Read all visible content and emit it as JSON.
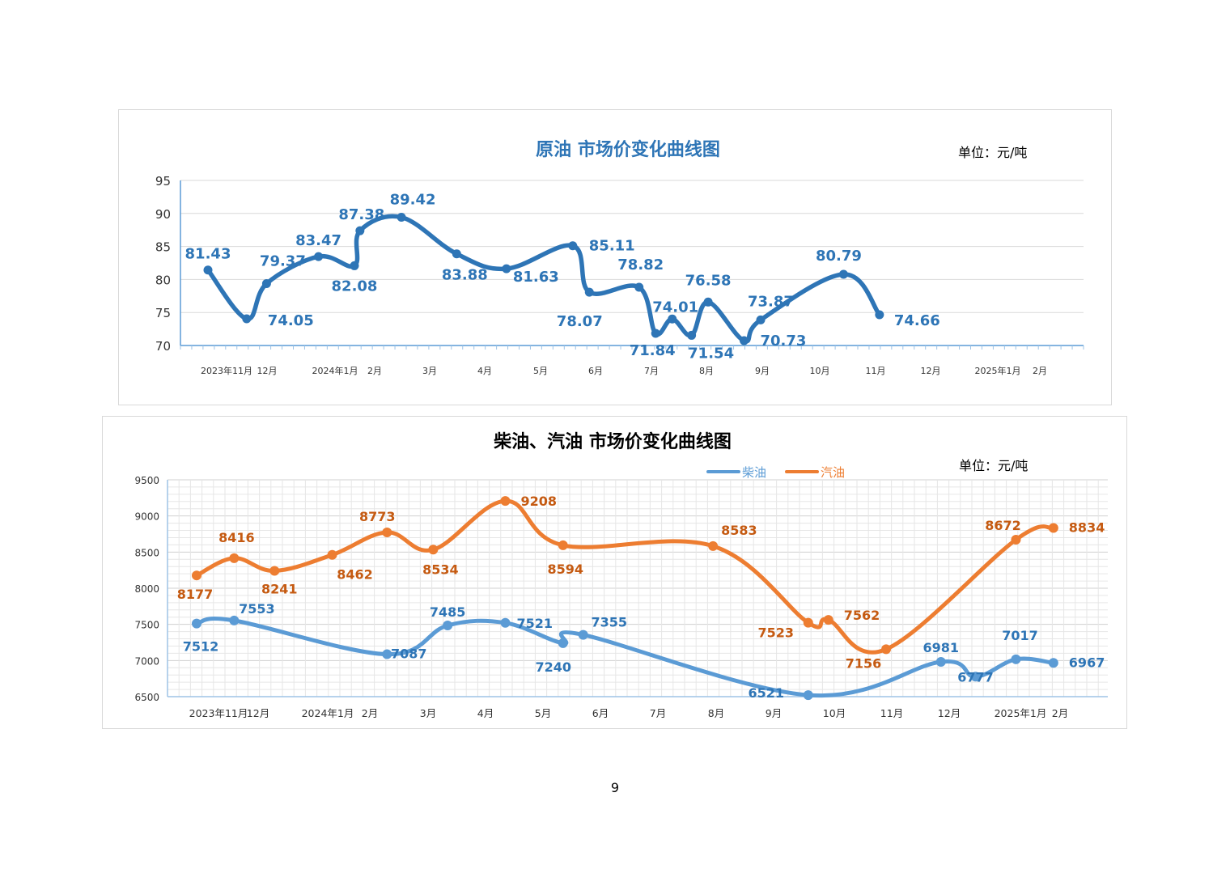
{
  "page": {
    "number": "9"
  },
  "chart_data": [
    {
      "type": "line",
      "title": "原油  市场价变化曲线图",
      "unit": "单位：元/吨",
      "ylim": [
        70,
        95
      ],
      "y_ticks": [
        "95",
        "90",
        "85",
        "80",
        "75",
        "70"
      ],
      "x_labels": [
        "2023年11月",
        "12月",
        "2024年1月",
        "2月",
        "3月",
        "4月",
        "5月",
        "6月",
        "7月",
        "8月",
        "9月",
        "10月",
        "11月",
        "12月",
        "2025年1月",
        "2月"
      ],
      "colors": {
        "line": "#2e75b6",
        "title": "#2e75b6",
        "label": "#2e75b6"
      },
      "series": [
        {
          "name": "原油",
          "points": [
            {
              "x": 0.0,
              "value": 81.43,
              "label": "81.43"
            },
            {
              "x": 0.7,
              "value": 74.05,
              "label": "74.05"
            },
            {
              "x": 1.06,
              "value": 79.37,
              "label": "79.37"
            },
            {
              "x": 2.0,
              "value": 83.47,
              "label": "83.47"
            },
            {
              "x": 2.65,
              "value": 82.08,
              "label": "82.08"
            },
            {
              "x": 2.75,
              "value": 87.38,
              "label": "87.38"
            },
            {
              "x": 3.5,
              "value": 89.42,
              "label": "89.42"
            },
            {
              "x": 4.5,
              "value": 83.88,
              "label": "83.88"
            },
            {
              "x": 5.4,
              "value": 81.63,
              "label": "81.63"
            },
            {
              "x": 6.6,
              "value": 85.11,
              "label": "85.11"
            },
            {
              "x": 6.9,
              "value": 78.07,
              "label": "78.07"
            },
            {
              "x": 7.8,
              "value": 78.82,
              "label": "78.82"
            },
            {
              "x": 8.1,
              "value": 71.84,
              "label": "71.84"
            },
            {
              "x": 8.4,
              "value": 74.01,
              "label": "74.01"
            },
            {
              "x": 8.75,
              "value": 71.54,
              "label": "71.54"
            },
            {
              "x": 9.05,
              "value": 76.58,
              "label": "76.58"
            },
            {
              "x": 9.7,
              "value": 70.73,
              "label": "70.73"
            },
            {
              "x": 10.0,
              "value": 73.87,
              "label": "73.87"
            },
            {
              "x": 11.5,
              "value": 80.79,
              "label": "80.79"
            },
            {
              "x": 12.15,
              "value": 74.66,
              "label": "74.66"
            }
          ]
        }
      ]
    },
    {
      "type": "line",
      "title": "柴油、汽油  市场价变化曲线图",
      "unit": "单位：元/吨",
      "ylim": [
        6500,
        9500
      ],
      "y_ticks": [
        "9500",
        "9000",
        "8500",
        "8000",
        "7500",
        "7000",
        "6500"
      ],
      "x_labels": [
        "2023年11月",
        "12月",
        "2024年1月",
        "2月",
        "3月",
        "4月",
        "5月",
        "6月",
        "7月",
        "8月",
        "9月",
        "10月",
        "11月",
        "12月",
        "2025年1月",
        "2月"
      ],
      "legend": [
        "柴油",
        "汽油"
      ],
      "colors": {
        "diesel": "#5b9bd5",
        "diesel_label": "#2e75b6",
        "gasoline": "#ed7d31",
        "gasoline_label": "#c55a11",
        "title": "#000000",
        "grid": "#e6e6e6"
      },
      "series": [
        {
          "name": "柴油",
          "points": [
            {
              "x": 0.0,
              "value": 7512,
              "label": "7512"
            },
            {
              "x": 0.65,
              "value": 7553,
              "label": "7553"
            },
            {
              "x": 3.3,
              "value": 7087,
              "label": "7087"
            },
            {
              "x": 4.35,
              "value": 7485,
              "label": "7485"
            },
            {
              "x": 5.35,
              "value": 7521,
              "label": "7521"
            },
            {
              "x": 6.35,
              "value": 7240,
              "label": "7240"
            },
            {
              "x": 6.7,
              "value": 7355,
              "label": "7355"
            },
            {
              "x": 10.6,
              "value": 6521,
              "label": "6521"
            },
            {
              "x": 12.9,
              "value": 6981,
              "label": "6981"
            },
            {
              "x": 13.5,
              "value": 6777,
              "label": "6777"
            },
            {
              "x": 14.2,
              "value": 7017,
              "label": "7017"
            },
            {
              "x": 14.85,
              "value": 6967,
              "label": "6967"
            }
          ]
        },
        {
          "name": "汽油",
          "points": [
            {
              "x": 0.0,
              "value": 8177,
              "label": "8177"
            },
            {
              "x": 0.65,
              "value": 8416,
              "label": "8416"
            },
            {
              "x": 1.35,
              "value": 8241,
              "label": "8241"
            },
            {
              "x": 2.35,
              "value": 8462,
              "label": "8462"
            },
            {
              "x": 3.3,
              "value": 8773,
              "label": "8773"
            },
            {
              "x": 4.1,
              "value": 8534,
              "label": "8534"
            },
            {
              "x": 5.35,
              "value": 9208,
              "label": "9208"
            },
            {
              "x": 6.35,
              "value": 8594,
              "label": "8594"
            },
            {
              "x": 8.95,
              "value": 8583,
              "label": "8583"
            },
            {
              "x": 10.6,
              "value": 7523,
              "label": "7523"
            },
            {
              "x": 10.95,
              "value": 7562,
              "label": "7562"
            },
            {
              "x": 11.95,
              "value": 7156,
              "label": "7156"
            },
            {
              "x": 14.2,
              "value": 8672,
              "label": "8672"
            },
            {
              "x": 14.85,
              "value": 8834,
              "label": "8834"
            }
          ]
        }
      ]
    }
  ]
}
